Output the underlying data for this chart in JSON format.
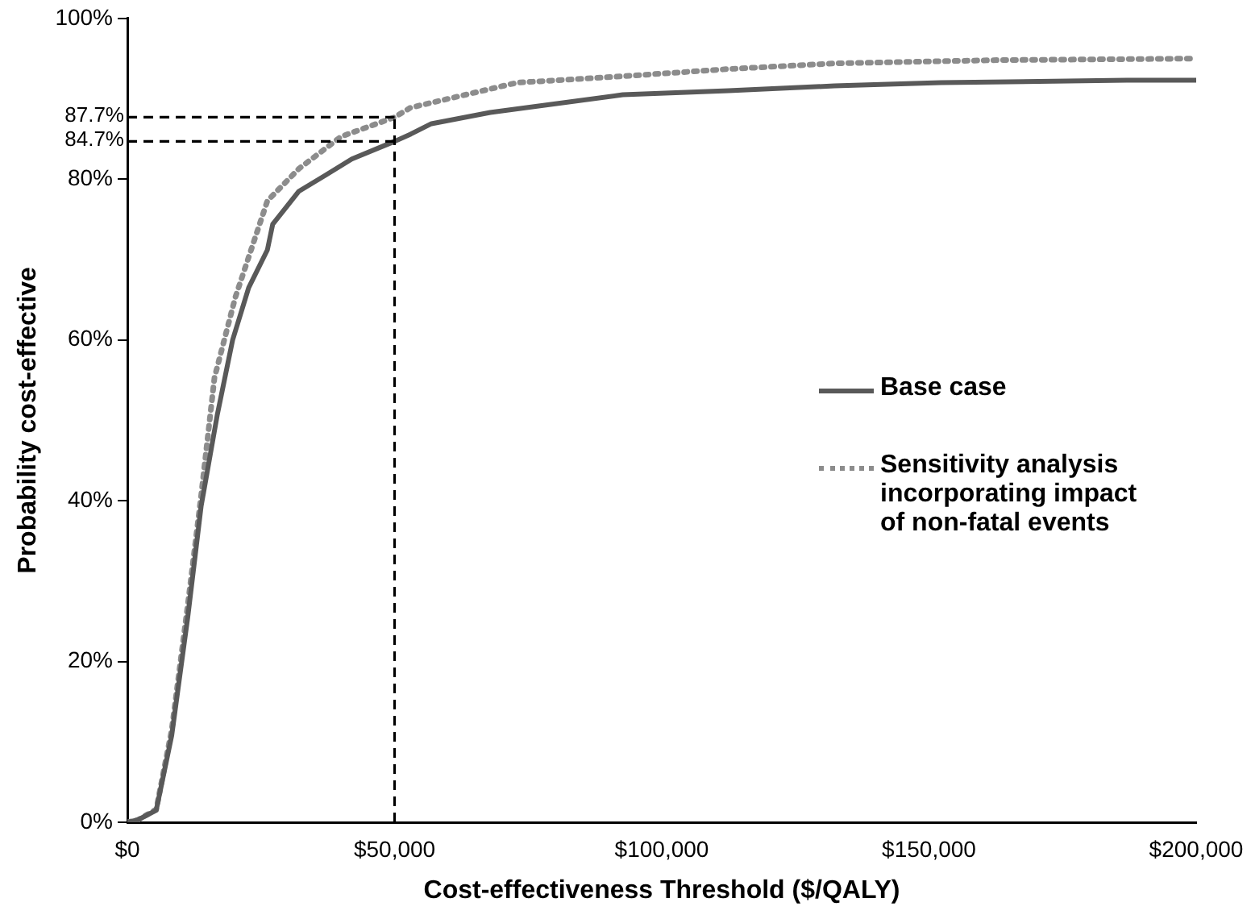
{
  "chart_data": {
    "type": "line",
    "xlabel": "Cost-effectiveness Threshold ($/QALY)",
    "ylabel": "Probability cost-effective",
    "xlim": [
      0,
      200000
    ],
    "xticks": [
      {
        "value": 0,
        "label": "$0"
      },
      {
        "value": 50000,
        "label": "$50,000"
      },
      {
        "value": 100000,
        "label": "$100,000"
      },
      {
        "value": 150000,
        "label": "$150,000"
      },
      {
        "value": 200000,
        "label": "$200,000"
      }
    ],
    "ylim": [
      0,
      100
    ],
    "yticks": [
      {
        "value": 0,
        "label": "0%"
      },
      {
        "value": 20,
        "label": "20%"
      },
      {
        "value": 40,
        "label": "40%"
      },
      {
        "value": 60,
        "label": "60%"
      },
      {
        "value": 80,
        "label": "80%"
      },
      {
        "value": 100,
        "label": "100%"
      }
    ],
    "grid": false,
    "legend": "right",
    "marker": "none",
    "series": [
      {
        "name": "Base case",
        "color": "#595959",
        "line_style": "solid",
        "x": [
          0,
          2000,
          5400,
          8300,
          11300,
          13800,
          16800,
          19700,
          22700,
          26200,
          27200,
          32100,
          37100,
          42000,
          50000,
          53000,
          56900,
          67900,
          92700,
          112500,
          132300,
          152200,
          187000,
          200000
        ],
        "values": [
          0,
          0.3,
          1.5,
          10.8,
          25.5,
          39.3,
          50.6,
          60,
          66.5,
          71.2,
          74.4,
          78.5,
          80.5,
          82.5,
          84.7,
          85.6,
          86.9,
          88.3,
          90.5,
          91,
          91.6,
          92,
          92.3,
          92.3
        ]
      },
      {
        "name": "Sensitivity analysis incorporating impact of non-fatal events",
        "color": "#8c8c8c",
        "line_style": "dotted",
        "x": [
          0,
          2000,
          5400,
          8300,
          11300,
          13800,
          16300,
          20200,
          26200,
          32100,
          40000,
          50000,
          53000,
          72900,
          92700,
          112500,
          132300,
          162000,
          200000
        ],
        "values": [
          0,
          0.3,
          1.6,
          11.5,
          27,
          40.6,
          55.3,
          65.3,
          77.3,
          81.3,
          85.3,
          87.7,
          88.9,
          92,
          92.8,
          93.7,
          94.4,
          94.8,
          95
        ]
      }
    ],
    "ref_lines": [
      {
        "axis": "y",
        "value": 87.7,
        "label": "87.7%",
        "line_style": "dashed",
        "color": "#000000"
      },
      {
        "axis": "y",
        "value": 84.7,
        "label": "84.7%",
        "line_style": "dashed",
        "color": "#000000"
      },
      {
        "axis": "x",
        "value": 50000,
        "line_style": "dashed",
        "color": "#000000"
      }
    ]
  }
}
